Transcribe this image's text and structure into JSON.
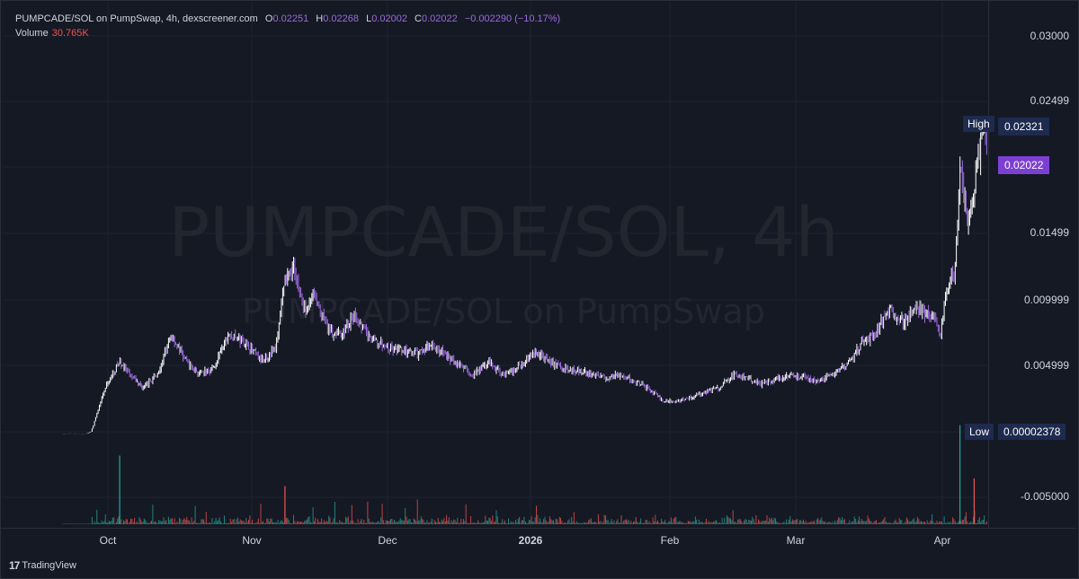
{
  "legend": {
    "title": "PUMPCADE/SOL on PumpSwap, 4h, dexscreener.com",
    "o_key": "O",
    "o_val": "0.02251",
    "h_key": "H",
    "h_val": "0.02268",
    "l_key": "L",
    "l_val": "0.02002",
    "c_key": "C",
    "c_val": "0.02022",
    "change": "−0.002290 (−10.17%)",
    "volume_label": "Volume",
    "volume_value": "30.765K"
  },
  "watermark": {
    "line1": "PUMPCADE/SOL, 4h",
    "line2": "PUMPCADE/SOL on PumpSwap"
  },
  "y_axis": {
    "ticks": [
      "0.03000",
      "0.02499",
      "0.01499",
      "0.009999",
      "0.004999",
      "-0.005000"
    ]
  },
  "badges": {
    "high_label": "High",
    "high_value": "0.02321",
    "last_value": "0.02022",
    "low_label": "Low",
    "low_value": "0.00002378"
  },
  "x_axis": {
    "ticks": [
      "Oct",
      "Nov",
      "Dec",
      "2026",
      "Feb",
      "Mar",
      "Apr"
    ]
  },
  "branding": {
    "logo_mark": "17",
    "logo_text": "TradingView"
  },
  "colors": {
    "background": "#151924",
    "candle_up": "#ffffff",
    "candle_down": "#9c6ade",
    "volume_up": "#26a69a",
    "volume_down": "#ef5350",
    "grid": "#1f2330",
    "high_low_badge": "#1e2a4e",
    "last_price_badge": "#7c3fd4"
  },
  "chart_data": {
    "type": "candlestick",
    "title": "PUMPCADE/SOL on PumpSwap, 4h, dexscreener.com",
    "interval": "4h",
    "x_range": [
      "2025-09-25",
      "2026-04-09"
    ],
    "ylim": [
      -0.0065,
      0.0315
    ],
    "grid": true,
    "price_path": [
      [
        "2025-09-25",
        3e-05
      ],
      [
        "2025-09-30",
        3e-05
      ],
      [
        "2025-10-01",
        0.0002
      ],
      [
        "2025-10-04",
        0.0035
      ],
      [
        "2025-10-07",
        0.0055
      ],
      [
        "2025-10-09",
        0.0045
      ],
      [
        "2025-10-12",
        0.0035
      ],
      [
        "2025-10-15",
        0.0045
      ],
      [
        "2025-10-18",
        0.0075
      ],
      [
        "2025-10-21",
        0.0055
      ],
      [
        "2025-10-24",
        0.0045
      ],
      [
        "2025-10-27",
        0.005
      ],
      [
        "2025-10-30",
        0.0075
      ],
      [
        "2025-11-03",
        0.0068
      ],
      [
        "2025-11-06",
        0.0055
      ],
      [
        "2025-11-09",
        0.0065
      ],
      [
        "2025-11-11",
        0.0115
      ],
      [
        "2025-11-13",
        0.0125
      ],
      [
        "2025-11-15",
        0.0095
      ],
      [
        "2025-11-17",
        0.0105
      ],
      [
        "2025-11-20",
        0.008
      ],
      [
        "2025-11-23",
        0.0075
      ],
      [
        "2025-11-26",
        0.009
      ],
      [
        "2025-11-29",
        0.0072
      ],
      [
        "2025-12-03",
        0.0065
      ],
      [
        "2025-12-06",
        0.0063
      ],
      [
        "2025-12-09",
        0.006
      ],
      [
        "2025-12-12",
        0.0068
      ],
      [
        "2025-12-15",
        0.006
      ],
      [
        "2025-12-18",
        0.0052
      ],
      [
        "2025-12-21",
        0.0045
      ],
      [
        "2025-12-24",
        0.0055
      ],
      [
        "2025-12-27",
        0.0045
      ],
      [
        "2025-12-30",
        0.005
      ],
      [
        "2026-01-03",
        0.0062
      ],
      [
        "2026-01-06",
        0.0055
      ],
      [
        "2026-01-09",
        0.005
      ],
      [
        "2026-01-12",
        0.0048
      ],
      [
        "2026-01-15",
        0.0045
      ],
      [
        "2026-01-18",
        0.0042
      ],
      [
        "2026-01-21",
        0.0045
      ],
      [
        "2026-01-24",
        0.004
      ],
      [
        "2026-01-27",
        0.0035
      ],
      [
        "2026-01-30",
        0.0025
      ],
      [
        "2026-02-02",
        0.0025
      ],
      [
        "2026-02-05",
        0.0028
      ],
      [
        "2026-02-08",
        0.0032
      ],
      [
        "2026-02-11",
        0.0035
      ],
      [
        "2026-02-14",
        0.0045
      ],
      [
        "2026-02-17",
        0.0042
      ],
      [
        "2026-02-20",
        0.0038
      ],
      [
        "2026-02-23",
        0.0042
      ],
      [
        "2026-02-26",
        0.0045
      ],
      [
        "2026-03-01",
        0.0043
      ],
      [
        "2026-03-04",
        0.004
      ],
      [
        "2026-03-07",
        0.0045
      ],
      [
        "2026-03-10",
        0.0052
      ],
      [
        "2026-03-13",
        0.0068
      ],
      [
        "2026-03-16",
        0.0075
      ],
      [
        "2026-03-19",
        0.0095
      ],
      [
        "2026-03-22",
        0.0085
      ],
      [
        "2026-03-25",
        0.0095
      ],
      [
        "2026-03-28",
        0.009
      ],
      [
        "2026-03-30",
        0.0075
      ],
      [
        "2026-03-31",
        0.0105
      ],
      [
        "2026-04-02",
        0.0125
      ],
      [
        "2026-04-03",
        0.0205
      ],
      [
        "2026-04-04",
        0.0175
      ],
      [
        "2026-04-05",
        0.016
      ],
      [
        "2026-04-06",
        0.0185
      ],
      [
        "2026-04-07",
        0.0215
      ],
      [
        "2026-04-08",
        0.023
      ],
      [
        "2026-04-09",
        0.02022
      ]
    ],
    "volume_spikes": [
      [
        "2025-10-07",
        0.0045
      ],
      [
        "2025-11-11",
        0.0025
      ],
      [
        "2026-04-03",
        0.0065
      ],
      [
        "2026-04-06",
        0.003
      ]
    ],
    "high": 0.02321,
    "low": 2.378e-05,
    "last": 0.02022
  }
}
